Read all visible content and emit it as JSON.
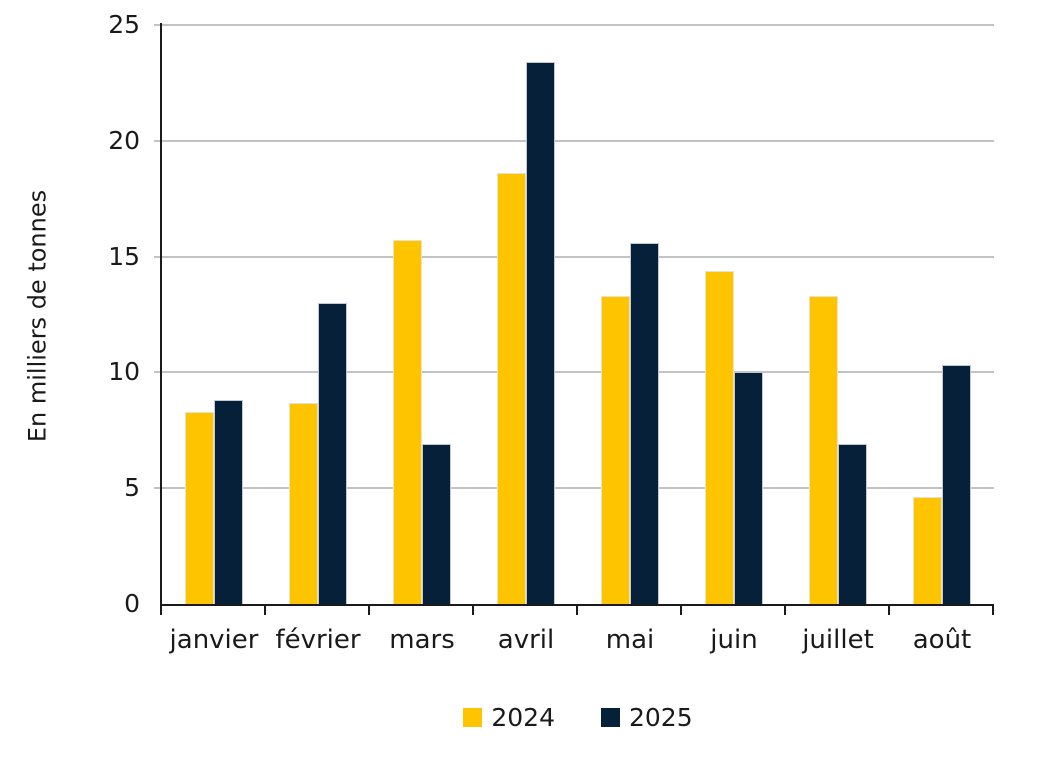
{
  "chart_data": {
    "type": "bar",
    "title": "",
    "xlabel": "",
    "ylabel": "En milliers de tonnes",
    "categories": [
      "janvier",
      "février",
      "mars",
      "avril",
      "mai",
      "juin",
      "juillet",
      "août"
    ],
    "series": [
      {
        "name": "2024",
        "color": "#ffc400",
        "values": [
          8.3,
          8.7,
          15.7,
          18.6,
          13.3,
          14.4,
          13.3,
          4.6
        ]
      },
      {
        "name": "2025",
        "color": "#06203a",
        "values": [
          8.8,
          13.0,
          6.9,
          23.4,
          15.6,
          10.0,
          6.9,
          10.3
        ]
      }
    ],
    "ylim": [
      0,
      25
    ],
    "yticks": [
      0,
      5,
      10,
      15,
      20,
      25
    ],
    "grid": true,
    "legend_position": "bottom"
  },
  "style_colors": {
    "grid": "#c3c3c3",
    "axis": "#1a1a1a",
    "text": "#1a1a1a",
    "background": "#ffffff"
  }
}
